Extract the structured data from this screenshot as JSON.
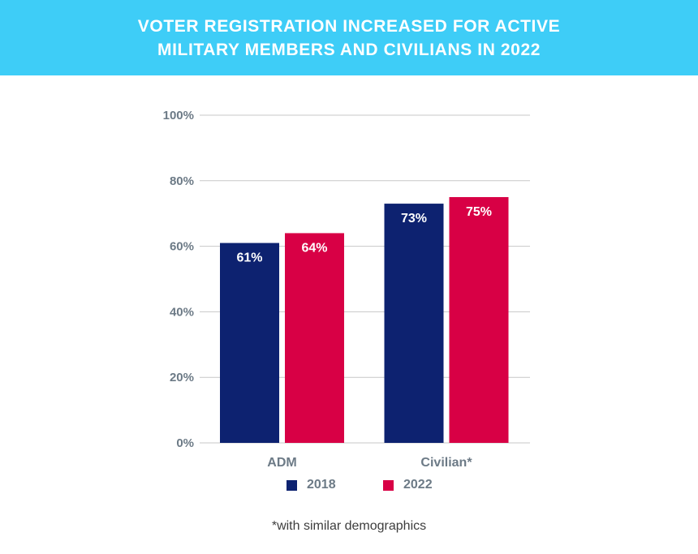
{
  "header": {
    "title_line1": "VOTER REGISTRATION INCREASED FOR ACTIVE",
    "title_line2": "MILITARY MEMBERS AND CIVILIANS IN 2022",
    "background": "#3ecdf7"
  },
  "chart_data": {
    "type": "bar",
    "title": "VOTER REGISTRATION INCREASED FOR ACTIVE MILITARY MEMBERS AND CIVILIANS IN 2022",
    "categories": [
      "ADM",
      "Civilian*"
    ],
    "series": [
      {
        "name": "2018",
        "values": [
          61,
          73
        ],
        "labels": [
          "61%",
          "73%"
        ],
        "color": "#0d2270"
      },
      {
        "name": "2022",
        "values": [
          64,
          75
        ],
        "labels": [
          "64%",
          "75%"
        ],
        "color": "#d80045"
      }
    ],
    "yticks": [
      "0%",
      "20%",
      "40%",
      "60%",
      "80%",
      "100%"
    ],
    "ylim": [
      0,
      100
    ],
    "grid": true,
    "legend": "bottom"
  },
  "legend": {
    "items": [
      {
        "label": "2018",
        "color": "#0d2270"
      },
      {
        "label": "2022",
        "color": "#d80045"
      }
    ]
  },
  "footnote": "*with similar demographics"
}
